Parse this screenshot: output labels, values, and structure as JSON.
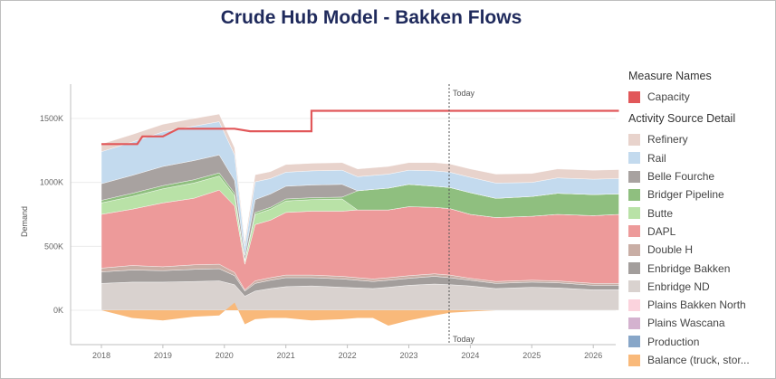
{
  "title": "Crude Hub Model - Bakken Flows",
  "annotation_top": "Today",
  "annotation_bottom": "Today",
  "legend": {
    "measure_title": "Measure Names",
    "measure_items": [
      {
        "label": "Capacity",
        "color": "#e15759"
      }
    ],
    "source_title": "Activity Source Detail",
    "source_items": [
      {
        "label": "Refinery",
        "color": "#e8d3cc"
      },
      {
        "label": "Rail",
        "color": "#c3daee"
      },
      {
        "label": "Belle Fourche",
        "color": "#a8a2a0"
      },
      {
        "label": "Bridger Pipeline",
        "color": "#8fbf7f"
      },
      {
        "label": "Butte",
        "color": "#b9e2a7"
      },
      {
        "label": "DAPL",
        "color": "#ed9a9a"
      },
      {
        "label": "Double H",
        "color": "#c9aea5"
      },
      {
        "label": "Enbridge Bakken",
        "color": "#a39e9c"
      },
      {
        "label": "Enbridge ND",
        "color": "#d9d2cf"
      },
      {
        "label": "Plains Bakken North",
        "color": "#fbd3dd"
      },
      {
        "label": "Plains Wascana",
        "color": "#d4b2cf"
      },
      {
        "label": "Production",
        "color": "#87a6c8"
      },
      {
        "label": "Balance (truck, stor...",
        "color": "#f9b97a"
      }
    ]
  },
  "chart_data": {
    "type": "area",
    "title": "Crude Hub Model - Bakken Flows",
    "ylabel": "Demand",
    "xlabel": "",
    "ylim": [
      -200000,
      1800000
    ],
    "y_ticks": [
      0,
      500000,
      1000000,
      1500000
    ],
    "y_tick_labels": [
      "0K",
      "500K",
      "1000K",
      "1500K"
    ],
    "x_ticks": [
      "2018",
      "2019",
      "2020",
      "2021",
      "2022",
      "2023",
      "2024",
      "2025",
      "2026"
    ],
    "today": "2023-09",
    "x": [
      "2018-01",
      "2018-07",
      "2019-01",
      "2019-07",
      "2019-12",
      "2020-03",
      "2020-05",
      "2020-07",
      "2020-10",
      "2021-01",
      "2021-06",
      "2021-12",
      "2022-03",
      "2022-06",
      "2022-09",
      "2023-01",
      "2023-06",
      "2023-09",
      "2024-01",
      "2024-06",
      "2025-01",
      "2025-06",
      "2026-01",
      "2026-06"
    ],
    "stack_series": [
      {
        "name": "Enbridge ND",
        "values": [
          210,
          220,
          220,
          225,
          230,
          200,
          110,
          150,
          170,
          185,
          190,
          180,
          175,
          170,
          180,
          195,
          205,
          200,
          190,
          170,
          180,
          175,
          160,
          160
        ]
      },
      {
        "name": "Enbridge Bakken",
        "values": [
          90,
          95,
          90,
          95,
          95,
          70,
          40,
          60,
          65,
          70,
          65,
          65,
          60,
          55,
          55,
          55,
          60,
          55,
          45,
          40,
          40,
          40,
          35,
          35
        ]
      },
      {
        "name": "Double H",
        "values": [
          30,
          35,
          30,
          35,
          35,
          25,
          10,
          20,
          20,
          20,
          20,
          20,
          20,
          20,
          20,
          20,
          20,
          20,
          15,
          15,
          15,
          15,
          15,
          15
        ]
      },
      {
        "name": "DAPL",
        "values": [
          420,
          440,
          500,
          520,
          580,
          520,
          200,
          440,
          450,
          490,
          500,
          510,
          530,
          540,
          530,
          540,
          520,
          520,
          500,
          500,
          500,
          520,
          530,
          540
        ]
      },
      {
        "name": "Butte",
        "values": [
          90,
          100,
          110,
          120,
          110,
          80,
          20,
          80,
          85,
          90,
          90,
          95,
          0,
          0,
          0,
          0,
          0,
          0,
          0,
          0,
          0,
          0,
          0,
          0
        ]
      },
      {
        "name": "Bridger Pipeline",
        "values": [
          20,
          25,
          25,
          25,
          25,
          20,
          10,
          15,
          15,
          15,
          15,
          15,
          150,
          160,
          170,
          175,
          165,
          165,
          170,
          150,
          155,
          165,
          165,
          160
        ]
      },
      {
        "name": "Belle Fourche",
        "values": [
          130,
          140,
          150,
          150,
          140,
          100,
          40,
          100,
          105,
          100,
          100,
          100,
          0,
          0,
          0,
          0,
          0,
          0,
          0,
          0,
          0,
          0,
          0,
          0
        ]
      },
      {
        "name": "Rail",
        "values": [
          250,
          260,
          270,
          270,
          260,
          200,
          70,
          140,
          120,
          110,
          110,
          110,
          110,
          110,
          110,
          110,
          120,
          120,
          120,
          120,
          110,
          120,
          120,
          120
        ]
      },
      {
        "name": "Refinery",
        "values": [
          60,
          60,
          60,
          60,
          60,
          55,
          40,
          55,
          55,
          60,
          60,
          60,
          60,
          60,
          60,
          60,
          65,
          65,
          65,
          70,
          70,
          70,
          70,
          70
        ]
      }
    ],
    "balance_series": {
      "name": "Balance (truck, stor...",
      "values": [
        0,
        -60,
        -80,
        -50,
        -40,
        60,
        -110,
        -70,
        -60,
        -60,
        -80,
        -70,
        -60,
        -60,
        -120,
        -80,
        -40,
        -20,
        -10,
        0,
        0,
        0,
        0,
        0
      ]
    },
    "unit_note_values_in_thousands": true,
    "capacity_series": {
      "name": "Capacity",
      "x": [
        "2018-01",
        "2018-08",
        "2018-09",
        "2019-01",
        "2019-04",
        "2020-03",
        "2020-06",
        "2020-09",
        "2021-06",
        "2021-06",
        "2026-06"
      ],
      "values": [
        1300,
        1300,
        1360,
        1360,
        1420,
        1420,
        1400,
        1400,
        1400,
        1560,
        1560
      ]
    }
  }
}
